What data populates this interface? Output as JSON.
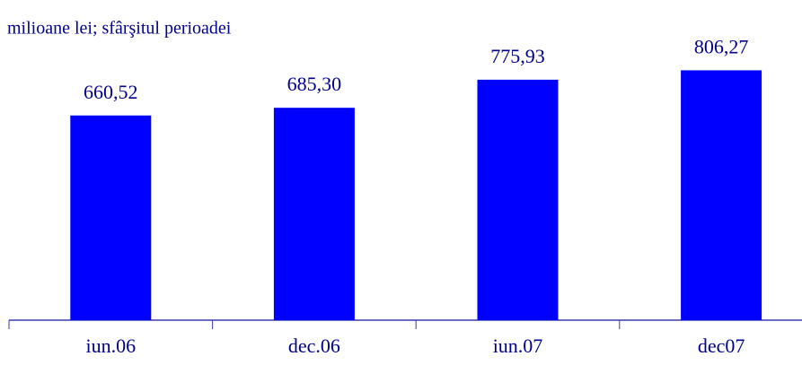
{
  "chart_data": {
    "type": "bar",
    "title": "milioane lei; sfârşitul perioadei",
    "categories": [
      "iun.06",
      "dec.06",
      "iun.07",
      "dec07"
    ],
    "values": [
      660.52,
      685.3,
      775.93,
      806.27
    ],
    "value_labels": [
      "660,52",
      "685,30",
      "775,93",
      "806,27"
    ],
    "color": "#0000ff",
    "ylim": [
      0,
      900
    ]
  }
}
